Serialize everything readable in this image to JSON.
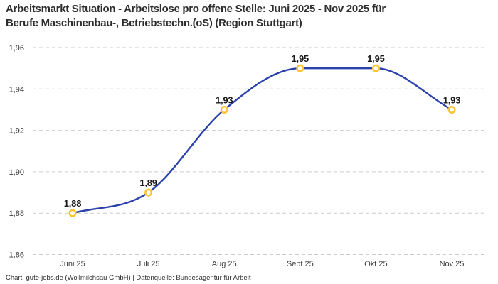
{
  "title": "Arbeitsmarkt Situation - Arbeitslose pro offene Stelle: Juni 2025 - Nov 2025 für\nBerufe Maschinenbau-, Betriebstechn.(oS) (Region Stuttgart)",
  "footer": "Chart: gute-jobs.de (Wollmilchsau GmbH) | Datenquelle: Bundesagentur für Arbeit",
  "colors": {
    "line": "#2a41ab",
    "marker_ring": "#fcc32e",
    "marker_fill": "#ffffff",
    "grid": "#cbcbcb",
    "title_text": "#2d2d2d",
    "axis_text": "#3a3a3a",
    "value_label_text": "#1a1a1a",
    "background": "#ffffff"
  },
  "chart_data": {
    "type": "line",
    "title": "Arbeitsmarkt Situation - Arbeitslose pro offene Stelle: Juni 2025 - Nov 2025 für Berufe Maschinenbau-, Betriebstechn.(oS) (Region Stuttgart)",
    "categories": [
      "Juni 25",
      "Juli 25",
      "Aug 25",
      "Sept 25",
      "Okt 25",
      "Nov 25"
    ],
    "series": [
      {
        "name": "Arbeitslose pro offene Stelle",
        "values": [
          1.88,
          1.89,
          1.93,
          1.95,
          1.95,
          1.93
        ],
        "value_labels": [
          "1,88",
          "1,89",
          "1,93",
          "1,95",
          "1,95",
          "1,93"
        ]
      }
    ],
    "xlabel": "",
    "ylabel": "",
    "ylim": [
      1.86,
      1.96
    ],
    "y_ticks": [
      {
        "value": 1.96,
        "label": "1,96"
      },
      {
        "value": 1.94,
        "label": "1,94"
      },
      {
        "value": 1.92,
        "label": "1,92"
      },
      {
        "value": 1.9,
        "label": "1,90"
      },
      {
        "value": 1.88,
        "label": "1,88"
      },
      {
        "value": 1.86,
        "label": "1,86"
      }
    ],
    "grid": "horizontal-dashed",
    "legend": "none",
    "curve": "smooth-monotone",
    "marker": "open-circle"
  }
}
